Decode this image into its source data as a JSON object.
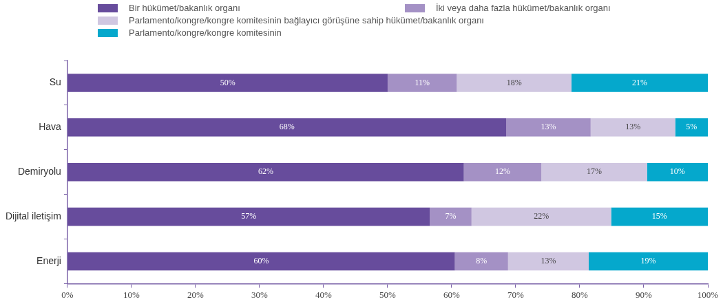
{
  "chart_data": {
    "type": "bar",
    "orientation": "horizontal",
    "stacked": true,
    "legend": "top",
    "grid": false,
    "categories": [
      "Su",
      "Hava",
      "Demiryolu",
      "Dijital iletişim",
      "Enerji"
    ],
    "xlim": [
      0,
      100
    ],
    "xticks": [
      {
        "value": 0,
        "label": "0%"
      },
      {
        "value": 10,
        "label": "10%"
      },
      {
        "value": 20,
        "label": "20%"
      },
      {
        "value": 30,
        "label": "30%"
      },
      {
        "value": 40,
        "label": "40%"
      },
      {
        "value": 50,
        "label": "50%"
      },
      {
        "value": 60,
        "label": "60%"
      },
      {
        "value": 70,
        "label": "70%"
      },
      {
        "value": 80,
        "label": "80%"
      },
      {
        "value": 90,
        "label": "90%"
      },
      {
        "value": 100,
        "label": "100%"
      }
    ],
    "series": [
      {
        "name": "Bir hükümet/bakanlık organı",
        "color": "#674c9c",
        "values": [
          50,
          68.5,
          61.9,
          56.6,
          60.5
        ],
        "value_labels": [
          "50%",
          "68%",
          "62%",
          "57%",
          "60%"
        ]
      },
      {
        "name": "İki veya daha fazla hükümet/bakanlık organı",
        "color": "#a491c5",
        "values": [
          10.8,
          13.2,
          12.1,
          6.5,
          8.3
        ],
        "value_labels": [
          "11%",
          "13%",
          "12%",
          "7%",
          "8%"
        ]
      },
      {
        "name": "Parlamento/kongre/kongre komitesinin bağlayıcı görüşüne sahip hükümet/bakanlık organı",
        "color": "#d0c7e1",
        "values": [
          17.9,
          13.2,
          16.5,
          21.8,
          12.6
        ],
        "value_labels": [
          "18%",
          "13%",
          "17%",
          "22%",
          "13%"
        ]
      },
      {
        "name": "Parlamento/kongre/kongre komitesinin",
        "color": "#05a8cc",
        "values": [
          21.3,
          5.1,
          9.5,
          15.1,
          18.6
        ],
        "value_labels": [
          "21%",
          "5%",
          "10%",
          "15%",
          "19%"
        ]
      }
    ]
  }
}
